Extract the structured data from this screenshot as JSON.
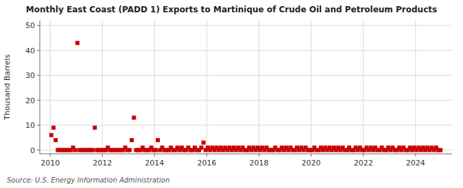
{
  "chart_data": {
    "type": "scatter",
    "title": "Monthly East Coast (PADD 1) Exports to Martinique of Crude Oil and Petroleum Products",
    "ylabel": "Thousand Barrels",
    "source": "Source: U.S. Energy Information Administration",
    "color": "#cc0000",
    "marker": "square",
    "grid": true,
    "xlim": [
      2009.6,
      2025.4
    ],
    "ylim": [
      -1.5,
      52
    ],
    "xticks": [
      2010,
      2012,
      2014,
      2016,
      2018,
      2020,
      2022,
      2024
    ],
    "yticks": [
      0,
      10,
      20,
      30,
      40,
      50
    ],
    "x": [
      2010.041666666667,
      2010.125,
      2010.208333333333,
      2010.291666666667,
      2010.375,
      2010.458333333333,
      2010.541666666667,
      2010.625,
      2010.708333333333,
      2010.791666666667,
      2010.875,
      2010.958333333333,
      2011.041666666667,
      2011.125,
      2011.208333333333,
      2011.291666666667,
      2011.375,
      2011.458333333333,
      2011.541666666667,
      2011.625,
      2011.708333333333,
      2011.791666666667,
      2011.875,
      2011.958333333333,
      2012.041666666667,
      2012.125,
      2012.208333333333,
      2012.291666666667,
      2012.375,
      2012.458333333333,
      2012.541666666667,
      2012.625,
      2012.708333333333,
      2012.791666666667,
      2012.875,
      2012.958333333333,
      2013.041666666667,
      2013.125,
      2013.208333333333,
      2013.291666666667,
      2013.375,
      2013.458333333333,
      2013.541666666667,
      2013.625,
      2013.708333333333,
      2013.791666666667,
      2013.875,
      2013.958333333333,
      2014.041666666667,
      2014.125,
      2014.208333333333,
      2014.291666666667,
      2014.375,
      2014.458333333333,
      2014.541666666667,
      2014.625,
      2014.708333333333,
      2014.791666666667,
      2014.875,
      2014.958333333333,
      2015.041666666667,
      2015.125,
      2015.208333333333,
      2015.291666666667,
      2015.375,
      2015.458333333333,
      2015.541666666667,
      2015.625,
      2015.708333333333,
      2015.791666666667,
      2015.875,
      2015.958333333333,
      2016.041666666667,
      2016.125,
      2016.208333333333,
      2016.291666666667,
      2016.375,
      2016.458333333333,
      2016.541666666667,
      2016.625,
      2016.708333333333,
      2016.791666666667,
      2016.875,
      2016.958333333333,
      2017.041666666667,
      2017.125,
      2017.208333333333,
      2017.291666666667,
      2017.375,
      2017.458333333333,
      2017.541666666667,
      2017.625,
      2017.708333333333,
      2017.791666666667,
      2017.875,
      2017.958333333333,
      2018.041666666667,
      2018.125,
      2018.208333333333,
      2018.291666666667,
      2018.375,
      2018.458333333333,
      2018.541666666667,
      2018.625,
      2018.708333333333,
      2018.791666666667,
      2018.875,
      2018.958333333333,
      2019.041666666667,
      2019.125,
      2019.208333333333,
      2019.291666666667,
      2019.375,
      2019.458333333333,
      2019.541666666667,
      2019.625,
      2019.708333333333,
      2019.791666666667,
      2019.875,
      2019.958333333333,
      2020.041666666667,
      2020.125,
      2020.208333333333,
      2020.291666666667,
      2020.375,
      2020.458333333333,
      2020.541666666667,
      2020.625,
      2020.708333333333,
      2020.791666666667,
      2020.875,
      2020.958333333333,
      2021.041666666667,
      2021.125,
      2021.208333333333,
      2021.291666666667,
      2021.375,
      2021.458333333333,
      2021.541666666667,
      2021.625,
      2021.708333333333,
      2021.791666666667,
      2021.875,
      2021.958333333333,
      2022.041666666667,
      2022.125,
      2022.208333333333,
      2022.291666666667,
      2022.375,
      2022.458333333333,
      2022.541666666667,
      2022.625,
      2022.708333333333,
      2022.791666666667,
      2022.875,
      2022.958333333333,
      2023.041666666667,
      2023.125,
      2023.208333333333,
      2023.291666666667,
      2023.375,
      2023.458333333333,
      2023.541666666667,
      2023.625,
      2023.708333333333,
      2023.791666666667,
      2023.875,
      2023.958333333333,
      2024.041666666667,
      2024.125,
      2024.208333333333,
      2024.291666666667,
      2024.375,
      2024.458333333333,
      2024.541666666667,
      2024.625,
      2024.708333333333,
      2024.791666666667,
      2024.875,
      2024.958333333333
    ],
    "values": [
      6,
      9,
      4,
      0,
      0,
      0,
      0,
      0,
      0,
      0,
      1,
      0,
      43,
      0,
      0,
      0,
      0,
      0,
      0,
      0,
      9,
      0,
      0,
      0,
      0,
      0,
      1,
      0,
      0,
      0,
      0,
      0,
      0,
      0,
      1,
      0,
      0,
      4,
      13,
      0,
      0,
      0,
      1,
      0,
      0,
      0,
      1,
      0,
      0,
      4,
      0,
      1,
      0,
      0,
      0,
      1,
      0,
      0,
      1,
      0,
      1,
      0,
      0,
      1,
      0,
      0,
      1,
      0,
      0,
      1,
      3,
      0,
      1,
      0,
      1,
      0,
      1,
      0,
      1,
      0,
      1,
      0,
      1,
      0,
      1,
      0,
      1,
      0,
      1,
      0,
      0,
      1,
      0,
      1,
      0,
      1,
      0,
      1,
      0,
      1,
      0,
      0,
      0,
      1,
      0,
      0,
      1,
      0,
      1,
      0,
      1,
      0,
      0,
      1,
      0,
      1,
      0,
      1,
      0,
      0,
      0,
      1,
      0,
      0,
      1,
      0,
      1,
      0,
      1,
      0,
      1,
      0,
      1,
      0,
      1,
      0,
      0,
      1,
      0,
      0,
      1,
      0,
      1,
      0,
      0,
      1,
      0,
      1,
      0,
      1,
      0,
      0,
      1,
      0,
      0,
      1,
      0,
      1,
      0,
      0,
      1,
      0,
      1,
      0,
      0,
      1,
      0,
      1,
      0,
      1,
      0,
      1,
      0,
      1,
      0,
      1,
      0,
      1,
      0,
      0
    ]
  }
}
